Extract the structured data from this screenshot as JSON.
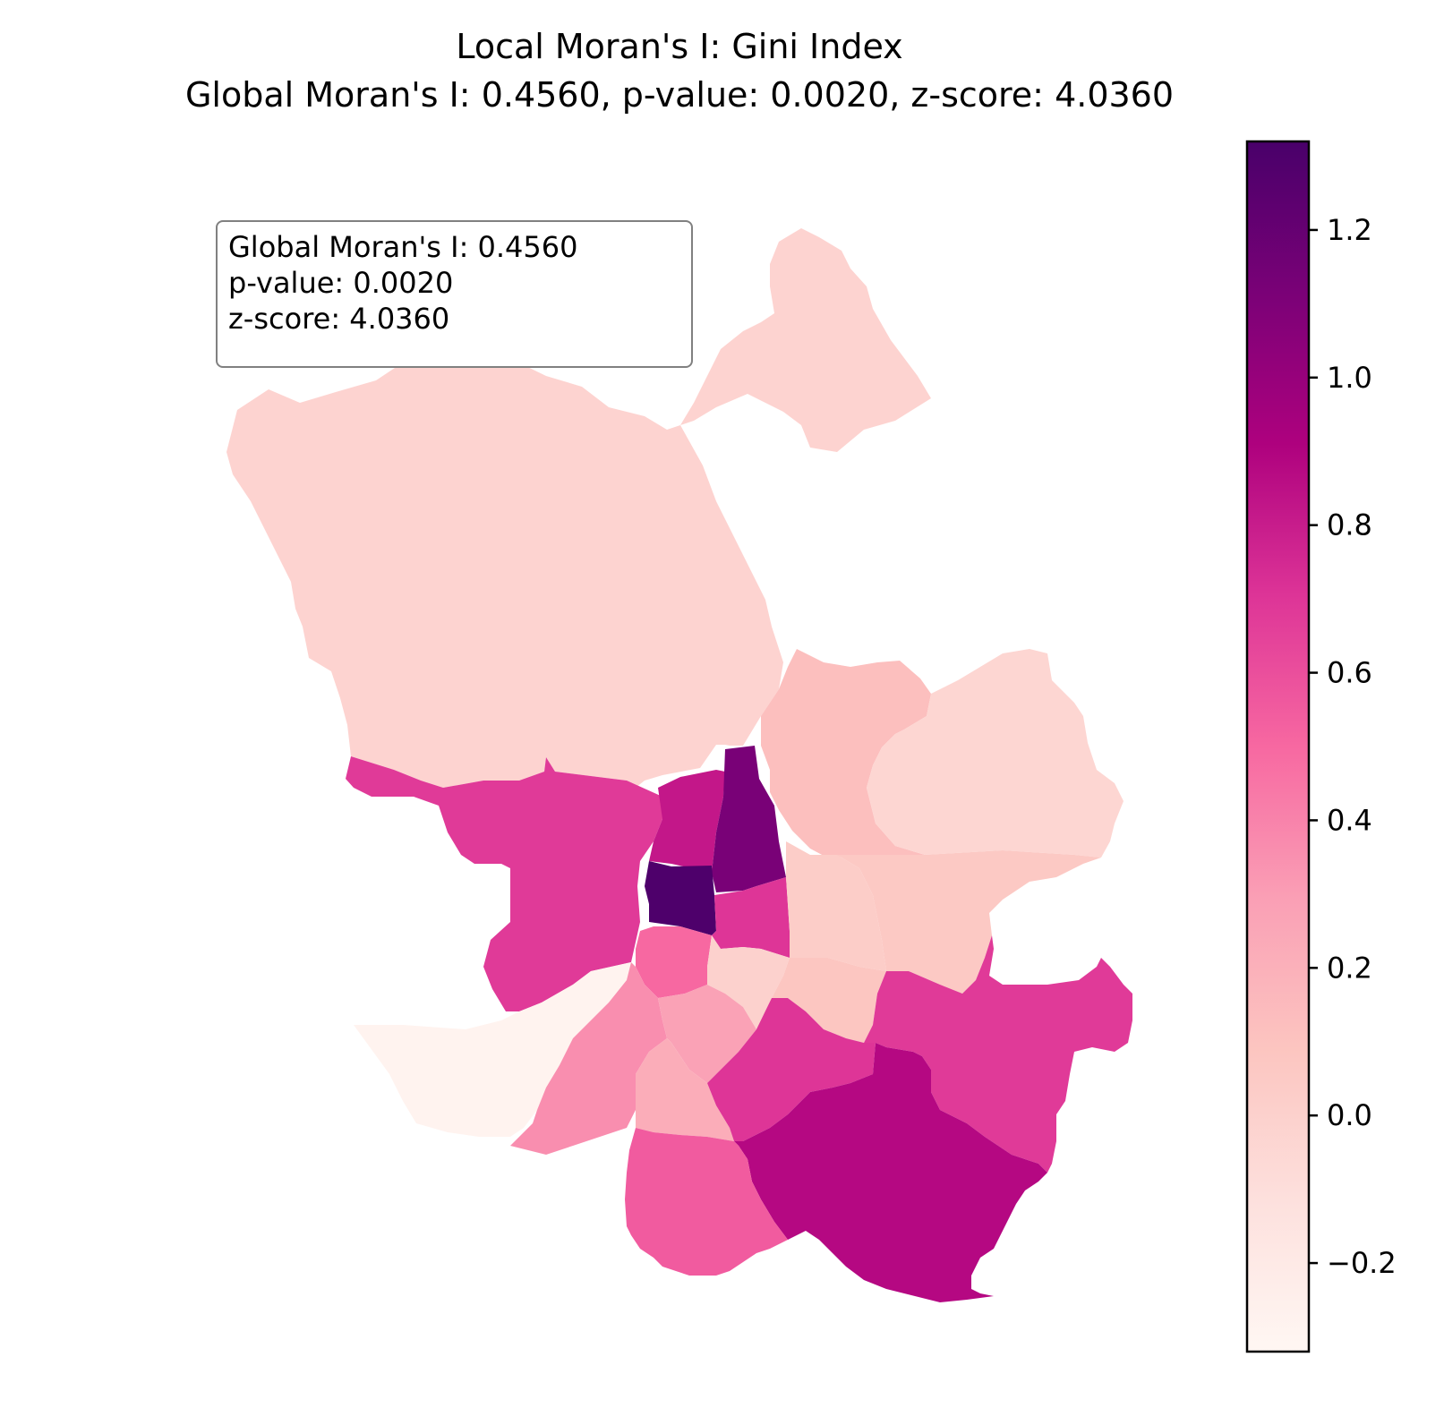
{
  "title": {
    "line1": "Local Moran's I: Gini Index",
    "line2": "Global Moran's I: 0.4560, p-value: 0.0020, z-score: 4.0360"
  },
  "stats_box": {
    "line1": "Global Moran's I: 0.4560",
    "line2": "p-value: 0.0020",
    "line3": "z-score: 4.0360"
  },
  "colorbar": {
    "colormap": "RdPu",
    "range": [
      -0.32,
      1.32
    ],
    "colors": [
      "#fff7f3",
      "#fde0dd",
      "#fcc5c0",
      "#fa9fb5",
      "#f768a1",
      "#dd3497",
      "#ae017e",
      "#7a0177",
      "#49006a"
    ],
    "ticks": [
      {
        "value": -0.2,
        "label": "−0.2"
      },
      {
        "value": 0.0,
        "label": "0.0"
      },
      {
        "value": 0.2,
        "label": "0.2"
      },
      {
        "value": 0.4,
        "label": "0.4"
      },
      {
        "value": 0.6,
        "label": "0.6"
      },
      {
        "value": 0.8,
        "label": "0.8"
      },
      {
        "value": 1.0,
        "label": "1.0"
      },
      {
        "value": 1.2,
        "label": "1.2"
      }
    ]
  },
  "regions": [
    {
      "id": "north-large",
      "value": -0.02
    },
    {
      "id": "north-east-lobe",
      "value": -0.02
    },
    {
      "id": "north-east-mid",
      "value": 0.12
    },
    {
      "id": "east",
      "value": -0.04
    },
    {
      "id": "west-center",
      "value": 0.68
    },
    {
      "id": "center-small-north",
      "value": 0.82
    },
    {
      "id": "center-strip",
      "value": 1.12
    },
    {
      "id": "center-dark",
      "value": 1.3
    },
    {
      "id": "center-south-a",
      "value": 0.7
    },
    {
      "id": "center-light",
      "value": 0.03
    },
    {
      "id": "east-center",
      "value": 0.06
    },
    {
      "id": "center-pink",
      "value": 0.5
    },
    {
      "id": "center-lightpink",
      "value": 0.0
    },
    {
      "id": "south-center-east",
      "value": 0.08
    },
    {
      "id": "south-west",
      "value": -0.28
    },
    {
      "id": "south-west-mid",
      "value": 0.36
    },
    {
      "id": "south-center-a",
      "value": 0.28
    },
    {
      "id": "south-center-b",
      "value": 0.22
    },
    {
      "id": "south-east-a",
      "value": 0.7
    },
    {
      "id": "east-south",
      "value": 0.68
    },
    {
      "id": "south-east-large",
      "value": 0.88
    },
    {
      "id": "south",
      "value": 0.55
    }
  ]
}
